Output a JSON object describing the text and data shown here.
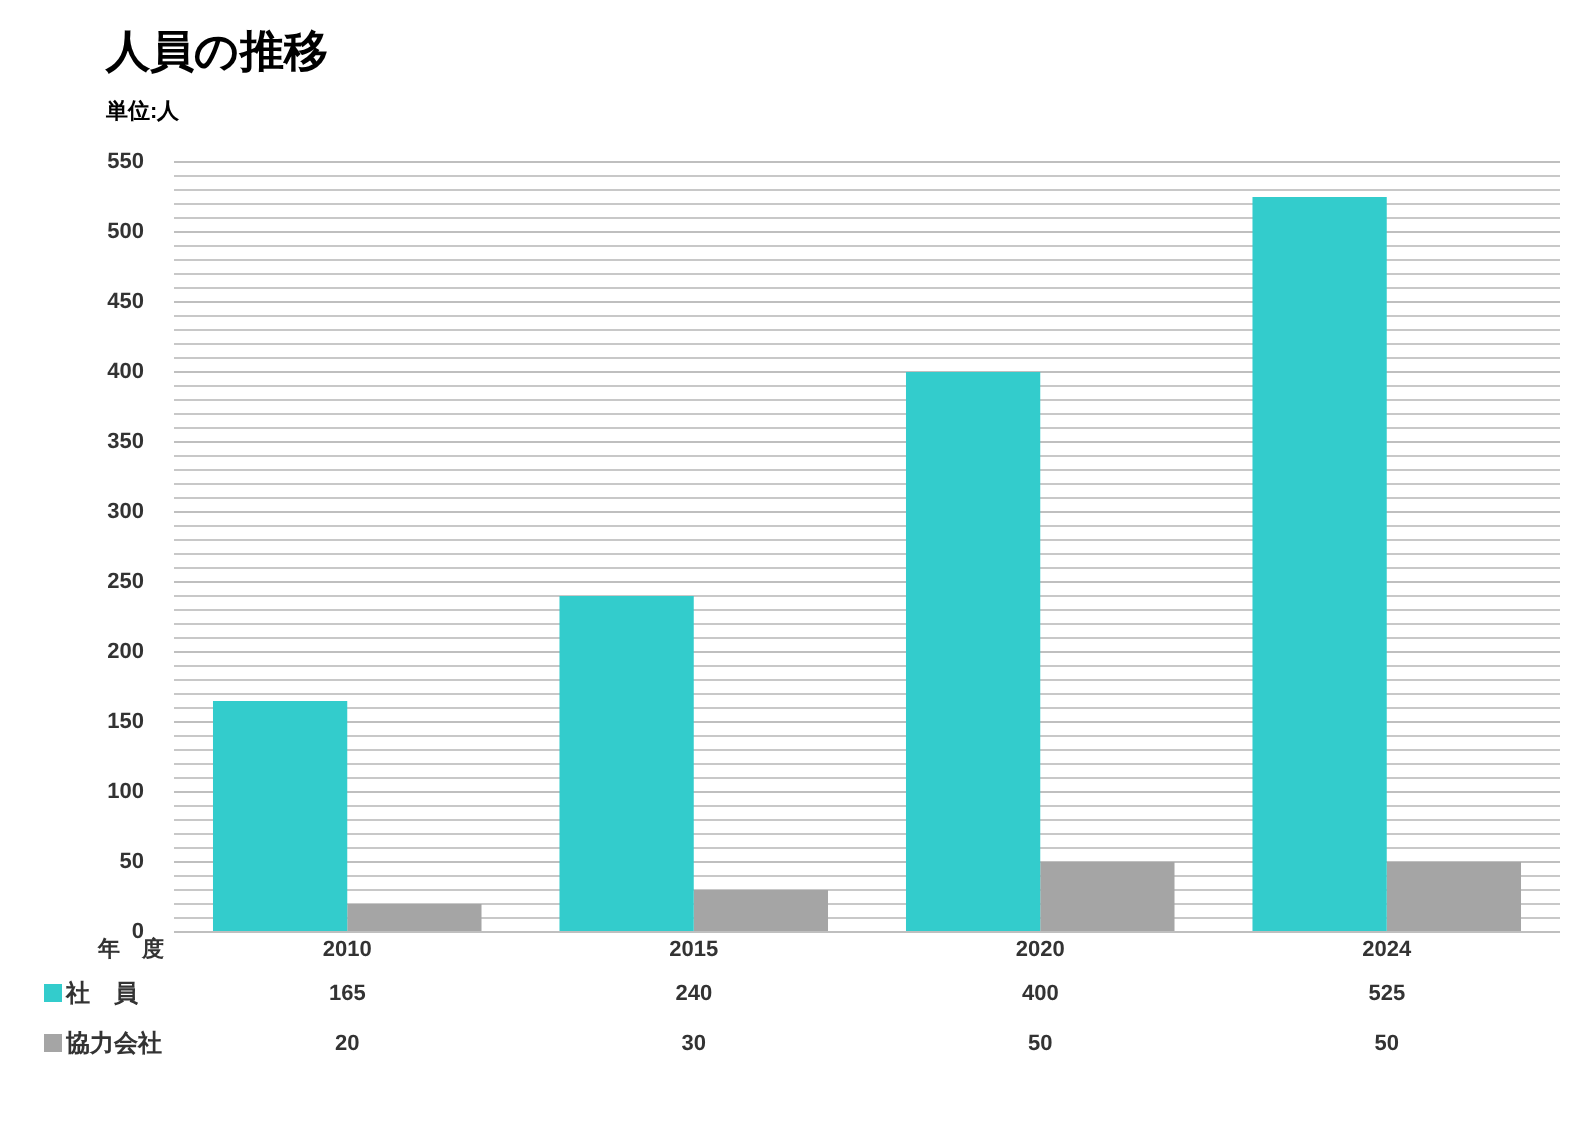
{
  "chart_data": {
    "type": "bar",
    "title": "人員の推移",
    "subtitle": "単位:人",
    "xlabel": "年　度",
    "categories": [
      "2010",
      "2015",
      "2020",
      "2024"
    ],
    "series": [
      {
        "name": "社　員",
        "color": "#33cccc",
        "values": [
          165,
          240,
          400,
          525
        ]
      },
      {
        "name": "協力会社",
        "color": "#a5a5a5",
        "values": [
          20,
          30,
          50,
          50
        ]
      }
    ],
    "ylim": [
      0,
      550
    ],
    "yticks": [
      0,
      {
        "value": 10,
        "label": null
      },
      {
        "value": 20,
        "label": null
      },
      {
        "value": 30,
        "label": null
      },
      {
        "value": 40,
        "label": null
      },
      50,
      {
        "value": 60,
        "label": null
      },
      {
        "value": 70,
        "label": null
      },
      {
        "value": 80,
        "label": null
      },
      {
        "value": 90,
        "label": null
      },
      100,
      {
        "value": 110,
        "label": null
      },
      {
        "value": 120,
        "label": null
      },
      {
        "value": 130,
        "label": null
      },
      {
        "value": 140,
        "label": null
      },
      150,
      {
        "value": 160,
        "label": null
      },
      {
        "value": 170,
        "label": null
      },
      {
        "value": 180,
        "label": null
      },
      {
        "value": 190,
        "label": null
      },
      200,
      {
        "value": 210,
        "label": null
      },
      {
        "value": 220,
        "label": null
      },
      {
        "value": 230,
        "label": null
      },
      {
        "value": 240,
        "label": null
      },
      250,
      {
        "value": 260,
        "label": null
      },
      {
        "value": 270,
        "label": null
      },
      {
        "value": 280,
        "label": null
      },
      {
        "value": 290,
        "label": null
      },
      300,
      {
        "value": 310,
        "label": null
      },
      {
        "value": 320,
        "label": null
      },
      {
        "value": 330,
        "label": null
      },
      {
        "value": 340,
        "label": null
      },
      350,
      {
        "value": 360,
        "label": null
      },
      {
        "value": 370,
        "label": null
      },
      {
        "value": 380,
        "label": null
      },
      {
        "value": 390,
        "label": null
      },
      400,
      {
        "value": 410,
        "label": null
      },
      {
        "value": 420,
        "label": null
      },
      {
        "value": 430,
        "label": null
      },
      {
        "value": 440,
        "label": null
      },
      450,
      {
        "value": 460,
        "label": null
      },
      {
        "value": 470,
        "label": null
      },
      {
        "value": 480,
        "label": null
      },
      {
        "value": 490,
        "label": null
      },
      500,
      {
        "value": 510,
        "label": null
      },
      {
        "value": 520,
        "label": null
      },
      {
        "value": 530,
        "label": null
      },
      {
        "value": 540,
        "label": null
      },
      550
    ],
    "grid": "y",
    "legend": "bottom",
    "data_labels": true
  }
}
